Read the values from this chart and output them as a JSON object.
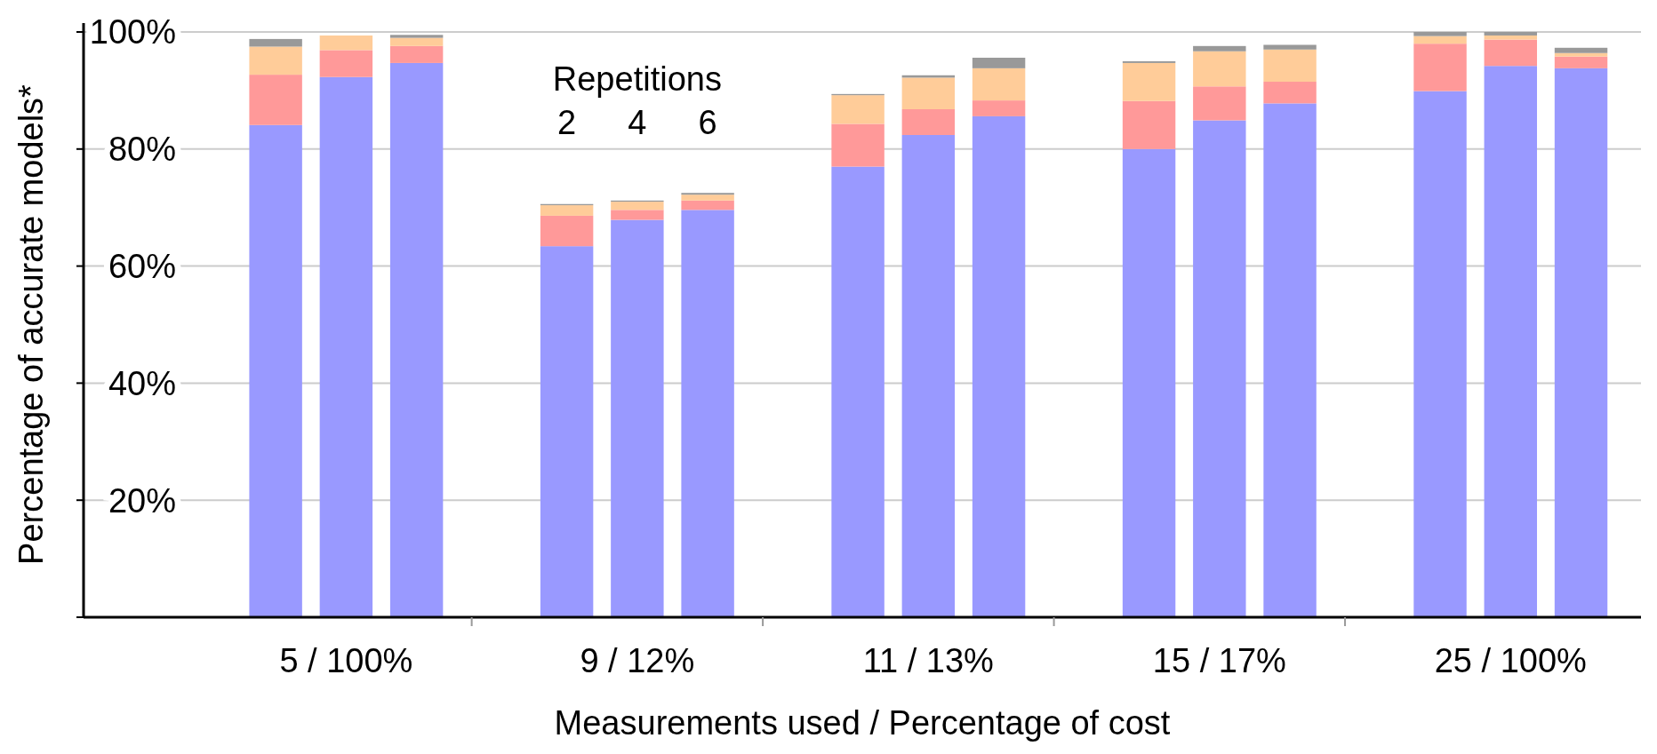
{
  "chart_data": {
    "type": "bar",
    "stacked": true,
    "categories": [
      null,
      "5 / 100%",
      null,
      null,
      "9 / 12%",
      null,
      null,
      "11 / 13%",
      null,
      null,
      "15 / 17%",
      null,
      null,
      "25 / 100%",
      null
    ],
    "series": [
      {
        "color": "#9999ff",
        "values": [
          84.1,
          92.3,
          94.7,
          63.4,
          67.9,
          69.6,
          77.0,
          82.4,
          85.6,
          80.0,
          84.9,
          87.8,
          89.9,
          94.2,
          93.8
        ]
      },
      {
        "color": "#ff9999",
        "values": [
          8.6,
          4.6,
          2.9,
          5.2,
          1.7,
          1.6,
          7.3,
          4.4,
          2.7,
          8.2,
          5.8,
          3.7,
          8.1,
          4.5,
          2.0
        ]
      },
      {
        "color": "#ffcc99",
        "values": [
          4.8,
          2.5,
          1.4,
          1.8,
          1.4,
          1.0,
          4.9,
          5.4,
          5.5,
          6.5,
          6.0,
          5.5,
          1.3,
          0.7,
          0.6
        ]
      },
      {
        "color": "#999999",
        "values": [
          1.3,
          0,
          0.5,
          0.2,
          0.2,
          0.3,
          0.2,
          0.4,
          1.8,
          0.3,
          0.9,
          0.8,
          0.7,
          0.6,
          0.9
        ]
      }
    ],
    "ylim": [
      0,
      100
    ],
    "yticks": [
      {
        "value": 0,
        "label": null
      },
      {
        "value": 20,
        "label": "20%"
      },
      {
        "value": 40,
        "label": "40%"
      },
      {
        "value": 60,
        "label": "60%"
      },
      {
        "value": 80,
        "label": "80%"
      },
      {
        "value": 100,
        "label": "100%"
      }
    ],
    "grid": "y",
    "xlabel": "Measurements used / Percentage of cost",
    "ylabel": "Percentage of accurate models*",
    "annotations": [
      "Repetitions",
      "2",
      "4",
      "6"
    ]
  }
}
